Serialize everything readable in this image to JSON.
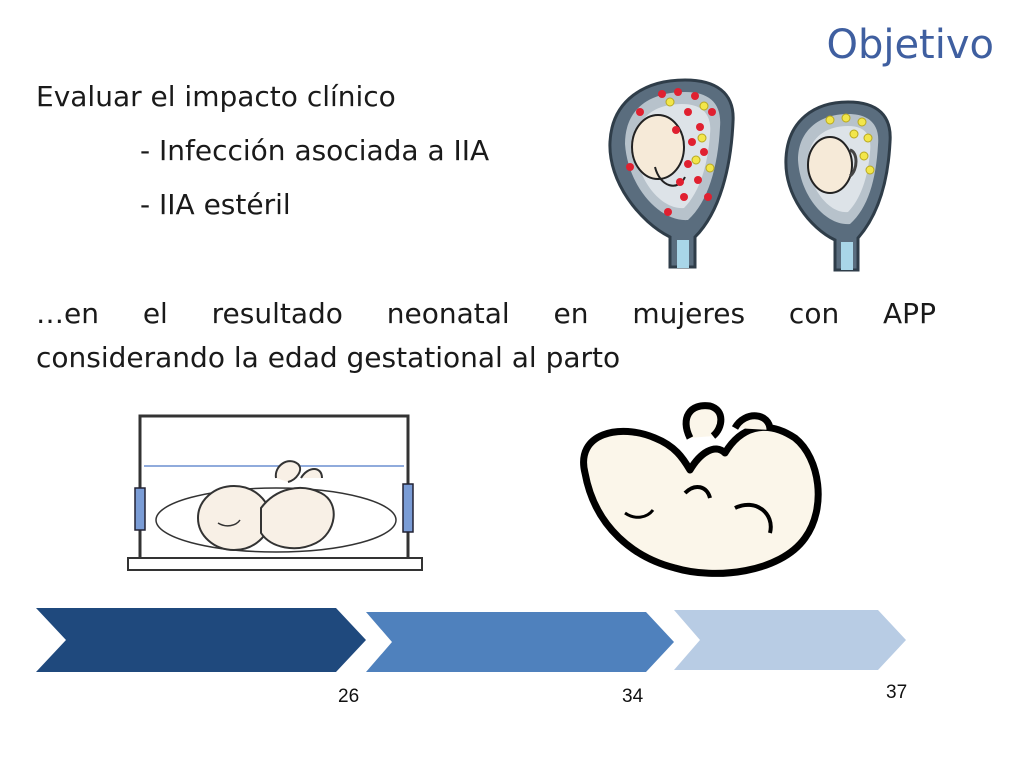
{
  "slide": {
    "title": "Objetivo",
    "lines": [
      "Evaluar el impacto clínico",
      "- Infección asociada a IIA",
      "- IIA estéril"
    ],
    "paragraph": {
      "words": [
        "…en",
        "el",
        "resultado",
        "neonatal",
        "en",
        "mujeres",
        "con",
        "APP"
      ],
      "line2": "considerando la edad gestational al parto"
    }
  },
  "timeline": {
    "labels": [
      "26",
      "34",
      "37"
    ],
    "colors": [
      "#1f497d",
      "#4f81bd",
      "#b8cce4"
    ]
  },
  "icons": [
    "uterus-infected-icon",
    "uterus-sterile-icon",
    "incubator-baby-icon",
    "newborn-baby-icon"
  ]
}
